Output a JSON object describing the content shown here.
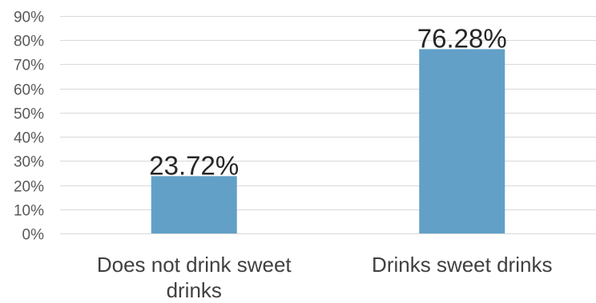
{
  "chart_data": {
    "type": "bar",
    "categories": [
      "Does not drink sweet drinks",
      "Drinks sweet drinks"
    ],
    "category_lines": [
      [
        "Does not drink sweet",
        "drinks"
      ],
      [
        "Drinks sweet drinks"
      ]
    ],
    "values": [
      23.72,
      76.28
    ],
    "data_labels": [
      "23.72%",
      "76.28%"
    ],
    "ylim": [
      0,
      90
    ],
    "yticks": [
      0,
      10,
      20,
      30,
      40,
      50,
      60,
      70,
      80,
      90
    ],
    "ytick_labels": [
      "0%",
      "10%",
      "20%",
      "30%",
      "40%",
      "50%",
      "60%",
      "70%",
      "80%",
      "90%"
    ],
    "grid": true,
    "bar_color": "#62a0c8",
    "title": "",
    "xlabel": "",
    "ylabel": ""
  }
}
